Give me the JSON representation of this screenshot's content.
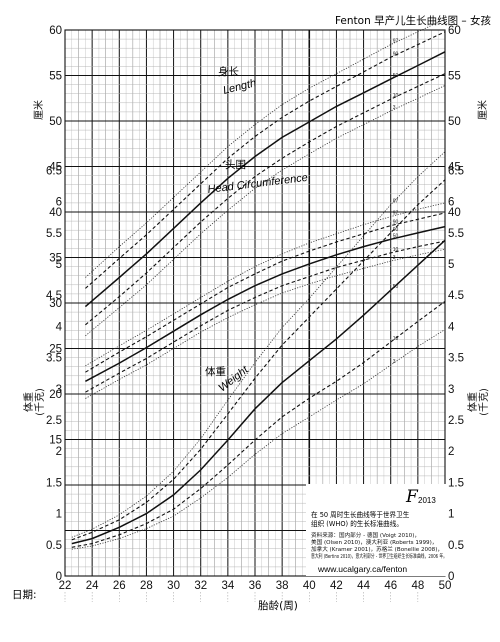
{
  "chart_data": {
    "type": "line",
    "title": "Fenton 早产儿生长曲线图 – 女孩",
    "xlabel": "胎龄(周)",
    "xlim": [
      22,
      50
    ],
    "x_ticks": [
      22,
      24,
      26,
      28,
      30,
      32,
      34,
      36,
      38,
      40,
      42,
      44,
      46,
      48,
      50
    ],
    "left_axis": {
      "label_line1": "厘米",
      "label_line2": "",
      "ticks": [
        0,
        5,
        10,
        15,
        20,
        25,
        30,
        35,
        40,
        45,
        50,
        55,
        60
      ],
      "ylim": [
        0,
        60
      ]
    },
    "right_axis_upper": {
      "ticks": [
        40,
        45,
        50,
        55,
        60
      ]
    },
    "right_axis_lower": {
      "ticks": [
        0,
        0.5,
        1,
        1.5,
        2,
        2.5,
        3,
        3.5,
        4,
        4.5,
        5,
        5.5,
        6,
        6.5
      ],
      "unit_range": [
        0,
        7
      ]
    },
    "left_lower_ticks": [
      0,
      0.5,
      1,
      1.5,
      2,
      2.5,
      3,
      3.5,
      4,
      4.5,
      5,
      5.5,
      6,
      6.5
    ],
    "weight_axis_label": {
      "line1": "体重",
      "line2": "(千克)"
    },
    "date_label": "日期:",
    "percentile_labels": [
      "3",
      "10",
      "50",
      "90",
      "97"
    ],
    "groups": {
      "length": {
        "label_cn": "身长",
        "label_en": "Length",
        "series": [
          {
            "name": "97",
            "x": [
              23.5,
              26,
              28,
              30,
              32,
              34,
              36,
              38,
              40,
              42,
              44,
              46,
              48,
              50
            ],
            "values": [
              32.8,
              36.2,
              38.8,
              41.6,
              44.4,
              47.2,
              49.6,
              51.8,
              53.6,
              55.2,
              56.8,
              58.4,
              59.8,
              61.2
            ]
          },
          {
            "name": "90",
            "x": [
              23.5,
              26,
              28,
              30,
              32,
              34,
              36,
              38,
              40,
              42,
              44,
              46,
              48,
              50
            ],
            "values": [
              31.6,
              34.9,
              37.5,
              40.3,
              43.1,
              45.9,
              48.3,
              50.4,
              52.2,
              53.8,
              55.4,
              57.0,
              58.4,
              59.8
            ]
          },
          {
            "name": "50",
            "x": [
              23.5,
              26,
              28,
              30,
              32,
              34,
              36,
              38,
              40,
              42,
              44,
              46,
              48,
              50
            ],
            "values": [
              29.6,
              32.8,
              35.4,
              38.2,
              41.0,
              43.7,
              46.1,
              48.2,
              49.9,
              51.6,
              53.1,
              54.6,
              56.1,
              57.6
            ]
          },
          {
            "name": "10",
            "x": [
              23.5,
              26,
              28,
              30,
              32,
              34,
              36,
              38,
              40,
              42,
              44,
              46,
              48,
              50
            ],
            "values": [
              27.6,
              30.7,
              33.3,
              36.1,
              38.9,
              41.5,
              43.9,
              45.9,
              47.7,
              49.4,
              50.9,
              52.4,
              53.8,
              55.2
            ]
          },
          {
            "name": "3",
            "x": [
              23.5,
              26,
              28,
              30,
              32,
              34,
              36,
              38,
              40,
              42,
              44,
              46,
              48,
              50
            ],
            "values": [
              26.4,
              29.5,
              32.0,
              34.8,
              37.6,
              40.2,
              42.6,
              44.6,
              46.4,
              48.1,
              49.6,
              51.1,
              52.5,
              53.9
            ]
          }
        ]
      },
      "head": {
        "label_cn": "头围",
        "label_en": "Head Circumference",
        "series": [
          {
            "name": "97",
            "x": [
              23.5,
              26,
              28,
              30,
              32,
              34,
              36,
              38,
              40,
              42,
              44,
              46,
              48,
              50
            ],
            "values": [
              23.1,
              25.3,
              27.0,
              28.8,
              30.6,
              32.4,
              34.0,
              35.4,
              36.6,
              37.6,
              38.6,
              39.5,
              40.3,
              41.0
            ]
          },
          {
            "name": "90",
            "x": [
              23.5,
              26,
              28,
              30,
              32,
              34,
              36,
              38,
              40,
              42,
              44,
              46,
              48,
              50
            ],
            "values": [
              22.4,
              24.6,
              26.3,
              28.1,
              29.9,
              31.7,
              33.2,
              34.6,
              35.7,
              36.7,
              37.6,
              38.5,
              39.2,
              39.9
            ]
          },
          {
            "name": "50",
            "x": [
              23.5,
              26,
              28,
              30,
              32,
              34,
              36,
              38,
              40,
              42,
              44,
              46,
              48,
              50
            ],
            "values": [
              21.4,
              23.4,
              25.1,
              26.9,
              28.7,
              30.4,
              31.9,
              33.2,
              34.3,
              35.3,
              36.2,
              37.0,
              37.7,
              38.4
            ]
          },
          {
            "name": "10",
            "x": [
              23.5,
              26,
              28,
              30,
              32,
              34,
              36,
              38,
              40,
              42,
              44,
              46,
              48,
              50
            ],
            "values": [
              20.2,
              22.3,
              23.9,
              25.7,
              27.5,
              29.2,
              30.6,
              31.9,
              32.9,
              33.9,
              34.7,
              35.5,
              36.2,
              36.8
            ]
          },
          {
            "name": "3",
            "x": [
              23.5,
              26,
              28,
              30,
              32,
              34,
              36,
              38,
              40,
              42,
              44,
              46,
              48,
              50
            ],
            "values": [
              19.5,
              21.6,
              23.2,
              25.0,
              26.8,
              28.4,
              29.8,
              31.1,
              32.1,
              33.0,
              33.8,
              34.6,
              35.3,
              35.9
            ]
          }
        ]
      },
      "weight": {
        "label_cn": "体重",
        "label_en": "Weight",
        "series": [
          {
            "name": "97",
            "x": [
              22.5,
              24,
              26,
              28,
              30,
              32,
              34,
              36,
              38,
              40,
              42,
              44,
              46,
              48,
              50
            ],
            "values": [
              0.62,
              0.75,
              0.98,
              1.28,
              1.68,
              2.2,
              2.82,
              3.42,
              3.98,
              4.45,
              4.95,
              5.45,
              5.95,
              6.4,
              6.8
            ]
          },
          {
            "name": "90",
            "x": [
              22.5,
              24,
              26,
              28,
              30,
              32,
              34,
              36,
              38,
              40,
              42,
              44,
              46,
              48,
              50
            ],
            "values": [
              0.58,
              0.7,
              0.9,
              1.18,
              1.55,
              2.03,
              2.6,
              3.17,
              3.7,
              4.15,
              4.6,
              5.05,
              5.5,
              5.95,
              6.35
            ]
          },
          {
            "name": "50",
            "x": [
              22.5,
              24,
              26,
              28,
              30,
              32,
              34,
              36,
              38,
              40,
              42,
              44,
              46,
              48,
              50
            ],
            "values": [
              0.52,
              0.6,
              0.78,
              1.0,
              1.3,
              1.7,
              2.18,
              2.68,
              3.1,
              3.45,
              3.8,
              4.18,
              4.58,
              4.98,
              5.38
            ]
          },
          {
            "name": "10",
            "x": [
              22.5,
              24,
              26,
              28,
              30,
              32,
              34,
              36,
              38,
              40,
              42,
              44,
              46,
              48,
              50
            ],
            "values": [
              0.46,
              0.52,
              0.66,
              0.84,
              1.07,
              1.4,
              1.78,
              2.18,
              2.55,
              2.85,
              3.12,
              3.42,
              3.75,
              4.08,
              4.4
            ]
          },
          {
            "name": "3",
            "x": [
              22.5,
              24,
              26,
              28,
              30,
              32,
              34,
              36,
              38,
              40,
              42,
              44,
              46,
              48,
              50
            ],
            "values": [
              0.43,
              0.48,
              0.6,
              0.76,
              0.96,
              1.25,
              1.58,
              1.95,
              2.28,
              2.55,
              2.82,
              3.08,
              3.38,
              3.68,
              3.95
            ]
          }
        ]
      }
    },
    "legend": "none",
    "grid": true
  },
  "notes": {
    "logo": "F",
    "logo_year": "2013",
    "who_text_line1": "在 50 周时生长曲线等于世界卫生",
    "who_text_line2": "组织 (WHO) 的生长标准曲线。",
    "ref_lines": [
      "资料来源：国内部分 - 德国 (Voigt 2010)，",
      "美国 (Olsen 2010)，澳大利亚 (Roberts 1999)，",
      "加拿大 (Kramer 2001)，苏格兰 (Bonellie 2008)，",
      "意大利 (Bertino 2010)，意大利部分 - 世界卫生组织生长标准曲线，2006 年。"
    ],
    "url": "www.ucalgary.ca/fenton"
  }
}
